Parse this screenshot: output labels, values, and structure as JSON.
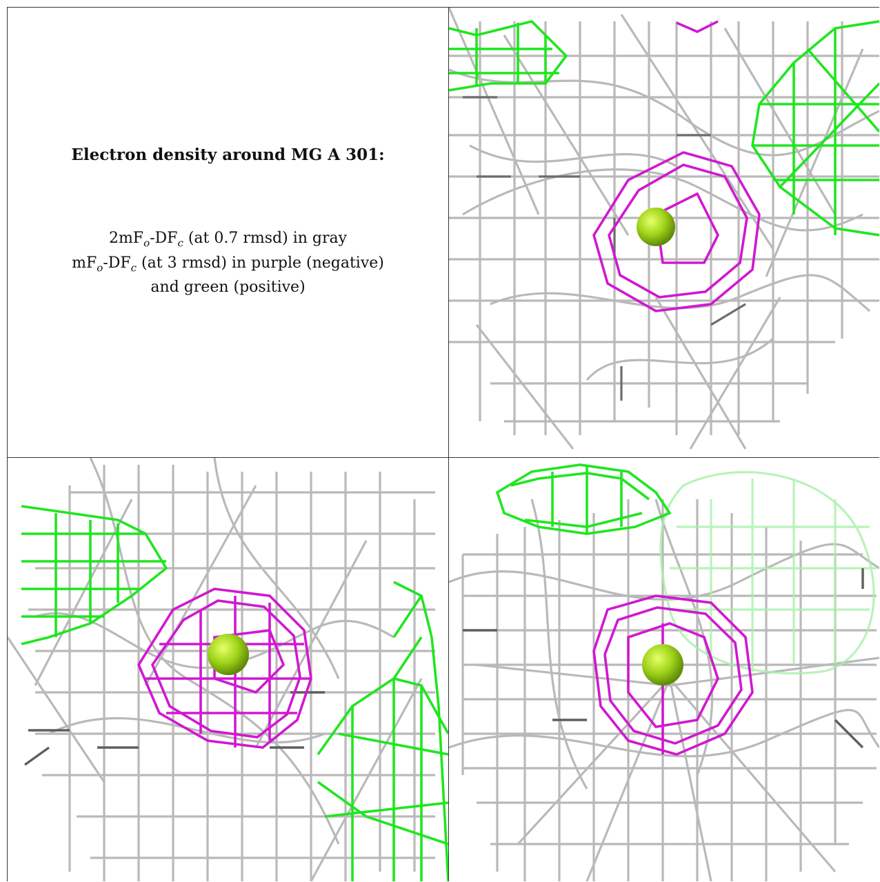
{
  "caption": {
    "title": "Electron density around MG A 301:",
    "line1": {
      "a": "2mF",
      "o": "o",
      "b": "-DF",
      "c": "c",
      "rest": " (at 0.7 rmsd) in gray"
    },
    "line2": {
      "a": "mF",
      "o": "o",
      "b": "-DF",
      "c": "c",
      "rest": " (at 3 rmsd) in purple (negative)"
    },
    "line3": "and green (positive)"
  },
  "colors": {
    "gray_mesh": "#b8b8b8",
    "dark_mesh": "#6e6e6e",
    "negative_mesh": "#d21ad2",
    "positive_mesh": "#1ee81e",
    "sphere": "#9acd1a"
  },
  "panels": [
    {
      "name": "view-1",
      "description_icon": "density-mesh"
    },
    {
      "name": "view-2",
      "description_icon": "density-mesh"
    },
    {
      "name": "view-3",
      "description_icon": "density-mesh"
    }
  ]
}
